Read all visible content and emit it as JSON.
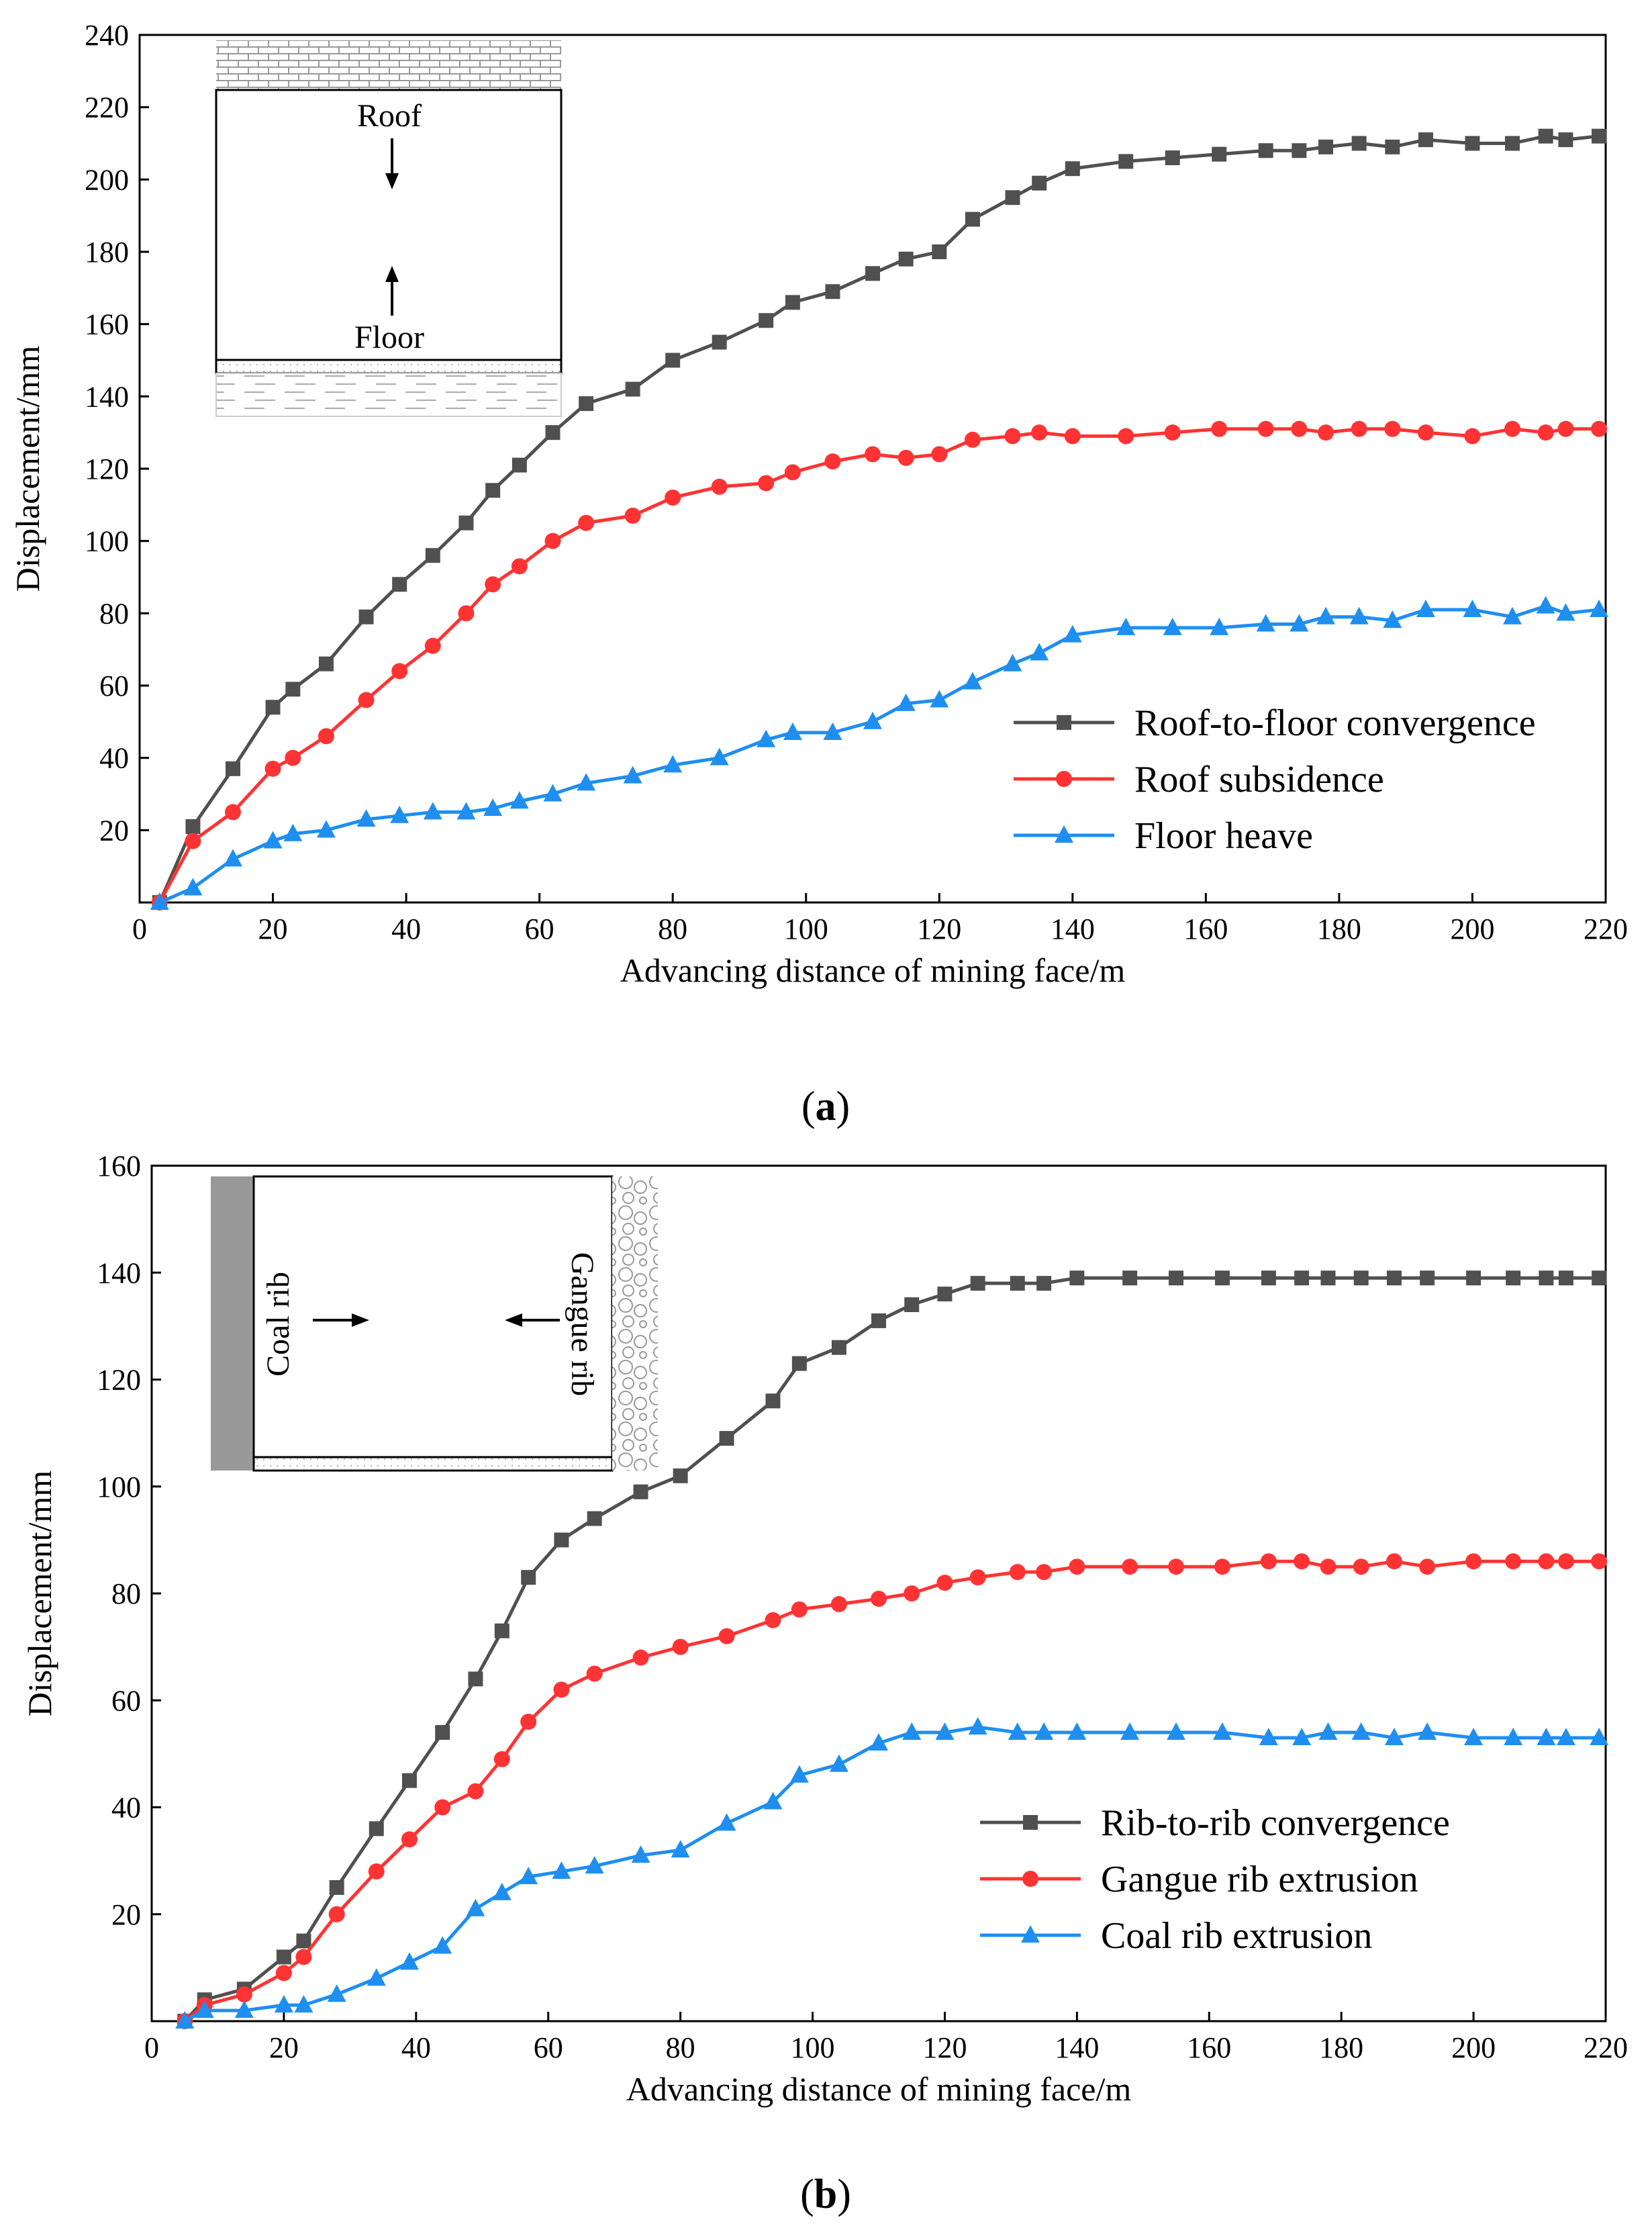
{
  "chart_data": [
    {
      "type": "line",
      "panel_label": "a",
      "xlabel": "Advancing distance of mining face/m",
      "ylabel": "Displacement/mm",
      "xlim": [
        0,
        220
      ],
      "ylim": [
        0,
        240
      ],
      "xticks": [
        0,
        20,
        40,
        60,
        80,
        100,
        120,
        140,
        160,
        180,
        200,
        220
      ],
      "yticks": [
        20,
        40,
        60,
        80,
        100,
        120,
        140,
        160,
        180,
        200,
        220,
        240
      ],
      "legend_position": "bottom-right",
      "inset": {
        "top_label": "Roof",
        "bottom_label": "Floor"
      },
      "series": [
        {
          "name": "Roof-to-floor convergence",
          "color": "#505050",
          "marker": "square",
          "x": [
            3,
            8,
            14,
            20,
            23,
            28,
            34,
            39,
            44,
            49,
            53,
            57,
            62,
            67,
            74,
            80,
            87,
            94,
            98,
            104,
            110,
            115,
            120,
            125,
            131,
            135,
            140,
            148,
            155,
            162,
            169,
            174,
            178,
            183,
            188,
            193,
            200,
            206,
            211,
            214,
            219
          ],
          "y": [
            0,
            21,
            37,
            54,
            59,
            66,
            79,
            88,
            96,
            105,
            114,
            121,
            130,
            138,
            142,
            150,
            155,
            161,
            166,
            169,
            174,
            178,
            180,
            189,
            195,
            199,
            203,
            205,
            206,
            207,
            208,
            208,
            209,
            210,
            209,
            211,
            210,
            210,
            212,
            211,
            212
          ]
        },
        {
          "name": "Roof  subsidence",
          "color": "#ff3333",
          "marker": "circle",
          "x": [
            3,
            8,
            14,
            20,
            23,
            28,
            34,
            39,
            44,
            49,
            53,
            57,
            62,
            67,
            74,
            80,
            87,
            94,
            98,
            104,
            110,
            115,
            120,
            125,
            131,
            135,
            140,
            148,
            155,
            162,
            169,
            174,
            178,
            183,
            188,
            193,
            200,
            206,
            211,
            214,
            219
          ],
          "y": [
            0,
            17,
            25,
            37,
            40,
            46,
            56,
            64,
            71,
            80,
            88,
            93,
            100,
            105,
            107,
            112,
            115,
            116,
            119,
            122,
            124,
            123,
            124,
            128,
            129,
            130,
            129,
            129,
            130,
            131,
            131,
            131,
            130,
            131,
            131,
            130,
            129,
            131,
            130,
            131,
            131
          ]
        },
        {
          "name": "Floor heave",
          "color": "#1f8ef1",
          "marker": "triangle",
          "x": [
            3,
            8,
            14,
            20,
            23,
            28,
            34,
            39,
            44,
            49,
            53,
            57,
            62,
            67,
            74,
            80,
            87,
            94,
            98,
            104,
            110,
            115,
            120,
            125,
            131,
            135,
            140,
            148,
            155,
            162,
            169,
            174,
            178,
            183,
            188,
            193,
            200,
            206,
            211,
            214,
            219
          ],
          "y": [
            0,
            4,
            12,
            17,
            19,
            20,
            23,
            24,
            25,
            25,
            26,
            28,
            30,
            33,
            35,
            38,
            40,
            45,
            47,
            47,
            50,
            55,
            56,
            61,
            66,
            69,
            74,
            76,
            76,
            76,
            77,
            77,
            79,
            79,
            78,
            81,
            81,
            79,
            82,
            80,
            81
          ]
        }
      ]
    },
    {
      "type": "line",
      "panel_label": "b",
      "xlabel": "Advancing distance of mining face/m",
      "ylabel": "Displacement/mm",
      "xlim": [
        0,
        220
      ],
      "ylim": [
        0,
        160
      ],
      "xticks": [
        0,
        20,
        40,
        60,
        80,
        100,
        120,
        140,
        160,
        180,
        200,
        220
      ],
      "yticks": [
        20,
        40,
        60,
        80,
        100,
        120,
        140,
        160
      ],
      "legend_position": "bottom-right",
      "inset": {
        "left_label": "Coal rib",
        "right_label": "Gangue rib"
      },
      "series": [
        {
          "name": "Rib-to-rib convergence",
          "color": "#505050",
          "marker": "square",
          "x": [
            5,
            8,
            14,
            20,
            23,
            28,
            34,
            39,
            44,
            49,
            53,
            57,
            62,
            67,
            74,
            80,
            87,
            94,
            98,
            104,
            110,
            115,
            120,
            125,
            131,
            135,
            140,
            148,
            155,
            162,
            169,
            174,
            178,
            183,
            188,
            193,
            200,
            206,
            211,
            214,
            219
          ],
          "y": [
            0,
            4,
            6,
            12,
            15,
            25,
            36,
            45,
            54,
            64,
            73,
            83,
            90,
            94,
            99,
            102,
            109,
            116,
            123,
            126,
            131,
            134,
            136,
            138,
            138,
            138,
            139,
            139,
            139,
            139,
            139,
            139,
            139,
            139,
            139,
            139,
            139,
            139,
            139,
            139,
            139
          ]
        },
        {
          "name": "Gangue  rib extrusion",
          "color": "#ff3333",
          "marker": "circle",
          "x": [
            5,
            8,
            14,
            20,
            23,
            28,
            34,
            39,
            44,
            49,
            53,
            57,
            62,
            67,
            74,
            80,
            87,
            94,
            98,
            104,
            110,
            115,
            120,
            125,
            131,
            135,
            140,
            148,
            155,
            162,
            169,
            174,
            178,
            183,
            188,
            193,
            200,
            206,
            211,
            214,
            219
          ],
          "y": [
            0,
            3,
            5,
            9,
            12,
            20,
            28,
            34,
            40,
            43,
            49,
            56,
            62,
            65,
            68,
            70,
            72,
            75,
            77,
            78,
            79,
            80,
            82,
            83,
            84,
            84,
            85,
            85,
            85,
            85,
            86,
            86,
            85,
            85,
            86,
            85,
            86,
            86,
            86,
            86,
            86
          ]
        },
        {
          "name": "Coal rib extrusion",
          "color": "#1f8ef1",
          "marker": "triangle",
          "x": [
            5,
            8,
            14,
            20,
            23,
            28,
            34,
            39,
            44,
            49,
            53,
            57,
            62,
            67,
            74,
            80,
            87,
            94,
            98,
            104,
            110,
            115,
            120,
            125,
            131,
            135,
            140,
            148,
            155,
            162,
            169,
            174,
            178,
            183,
            188,
            193,
            200,
            206,
            211,
            214,
            219
          ],
          "y": [
            0,
            2,
            2,
            3,
            3,
            5,
            8,
            11,
            14,
            21,
            24,
            27,
            28,
            29,
            31,
            32,
            37,
            41,
            46,
            48,
            52,
            54,
            54,
            55,
            54,
            54,
            54,
            54,
            54,
            54,
            53,
            53,
            54,
            54,
            53,
            54,
            53,
            53,
            53,
            53,
            53
          ]
        }
      ]
    }
  ]
}
